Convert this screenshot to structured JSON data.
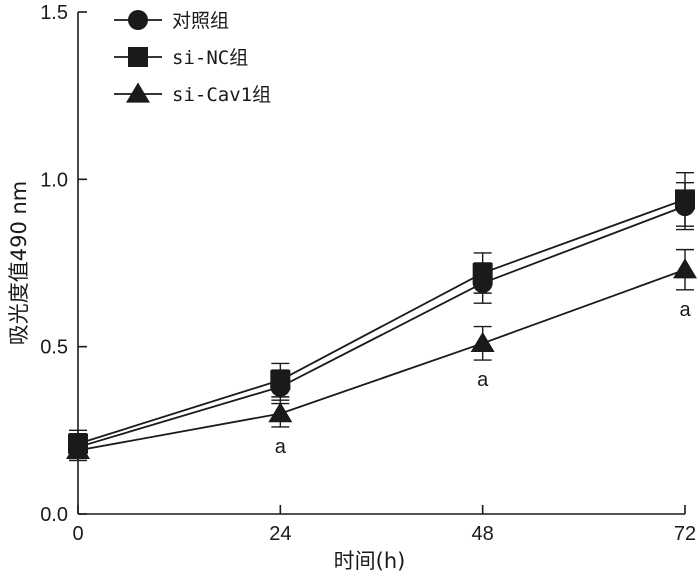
{
  "chart_data": {
    "type": "line",
    "xlabel": "时间(h)",
    "ylabel": "吸光度值490 nm",
    "xlim": [
      0,
      72
    ],
    "ylim": [
      0,
      1.5
    ],
    "x": [
      0,
      24,
      48,
      72
    ],
    "x_ticks": [
      "0",
      "24",
      "48",
      "72"
    ],
    "y_ticks": [
      "0.0",
      "0.5",
      "1.0",
      "1.5"
    ],
    "grid": false,
    "legend_position": "top-left",
    "series": [
      {
        "name": "对照组",
        "marker": "circle",
        "values": [
          0.2,
          0.38,
          0.69,
          0.92
        ],
        "errors": [
          0.04,
          0.05,
          0.06,
          0.07
        ]
      },
      {
        "name": "si-NC组",
        "marker": "square",
        "values": [
          0.21,
          0.4,
          0.72,
          0.94
        ],
        "errors": [
          0.04,
          0.05,
          0.06,
          0.08
        ]
      },
      {
        "name": "si-Cav1组",
        "marker": "triangle",
        "values": [
          0.19,
          0.3,
          0.51,
          0.73
        ],
        "errors": [
          0.03,
          0.04,
          0.05,
          0.06
        ]
      }
    ],
    "annotations": [
      {
        "series": "si-Cav1组",
        "x": 24,
        "text": "a"
      },
      {
        "series": "si-Cav1组",
        "x": 48,
        "text": "a"
      },
      {
        "series": "si-Cav1组",
        "x": 72,
        "text": "a"
      }
    ]
  }
}
